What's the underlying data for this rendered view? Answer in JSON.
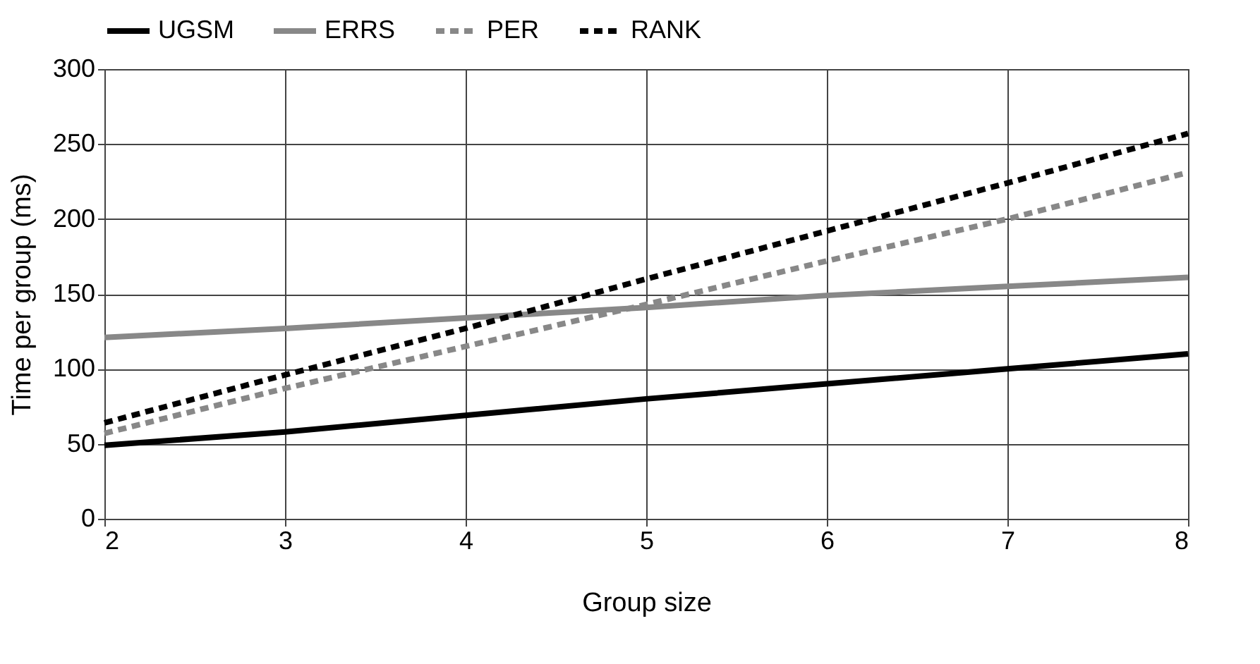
{
  "chart_data": {
    "type": "line",
    "xlabel": "Group size",
    "ylabel": "Time per group (ms)",
    "x": [
      2,
      3,
      4,
      5,
      6,
      7,
      8
    ],
    "series": [
      {
        "name": "UGSM",
        "color": "#000000",
        "line_style": "solid",
        "values": [
          49,
          58,
          69,
          80,
          90,
          100,
          110
        ]
      },
      {
        "name": "ERRS",
        "color": "#888888",
        "line_style": "solid",
        "values": [
          121,
          127,
          134,
          141,
          149,
          155,
          161
        ]
      },
      {
        "name": "PER",
        "color": "#888888",
        "line_style": "dashed",
        "values": [
          57,
          87,
          115,
          143,
          172,
          200,
          231
        ]
      },
      {
        "name": "RANK",
        "color": "#000000",
        "line_style": "dashed",
        "values": [
          64,
          96,
          127,
          160,
          192,
          224,
          257
        ]
      }
    ],
    "xlim": [
      2,
      8
    ],
    "xticks": [
      2,
      3,
      4,
      5,
      6,
      7,
      8
    ],
    "ylim": [
      0,
      300
    ],
    "yticks": [
      0,
      50,
      100,
      150,
      200,
      250,
      300
    ],
    "grid": true,
    "legend": "top",
    "marker": "none"
  }
}
